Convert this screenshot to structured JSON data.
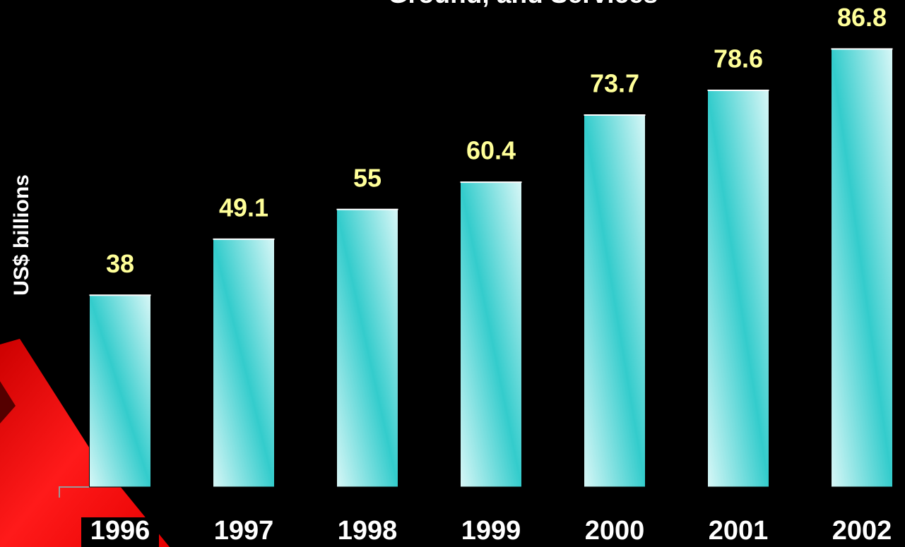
{
  "chart_data": {
    "type": "bar",
    "title": "Ground, and Services",
    "y_label": "US$ billions",
    "categories": [
      "1996",
      "1997",
      "1998",
      "1999",
      "2000",
      "2001",
      "2002"
    ],
    "values": [
      38,
      49.1,
      55,
      60.4,
      73.7,
      78.6,
      86.8
    ],
    "color": "#33cccc",
    "label_color": "#ffff99"
  }
}
